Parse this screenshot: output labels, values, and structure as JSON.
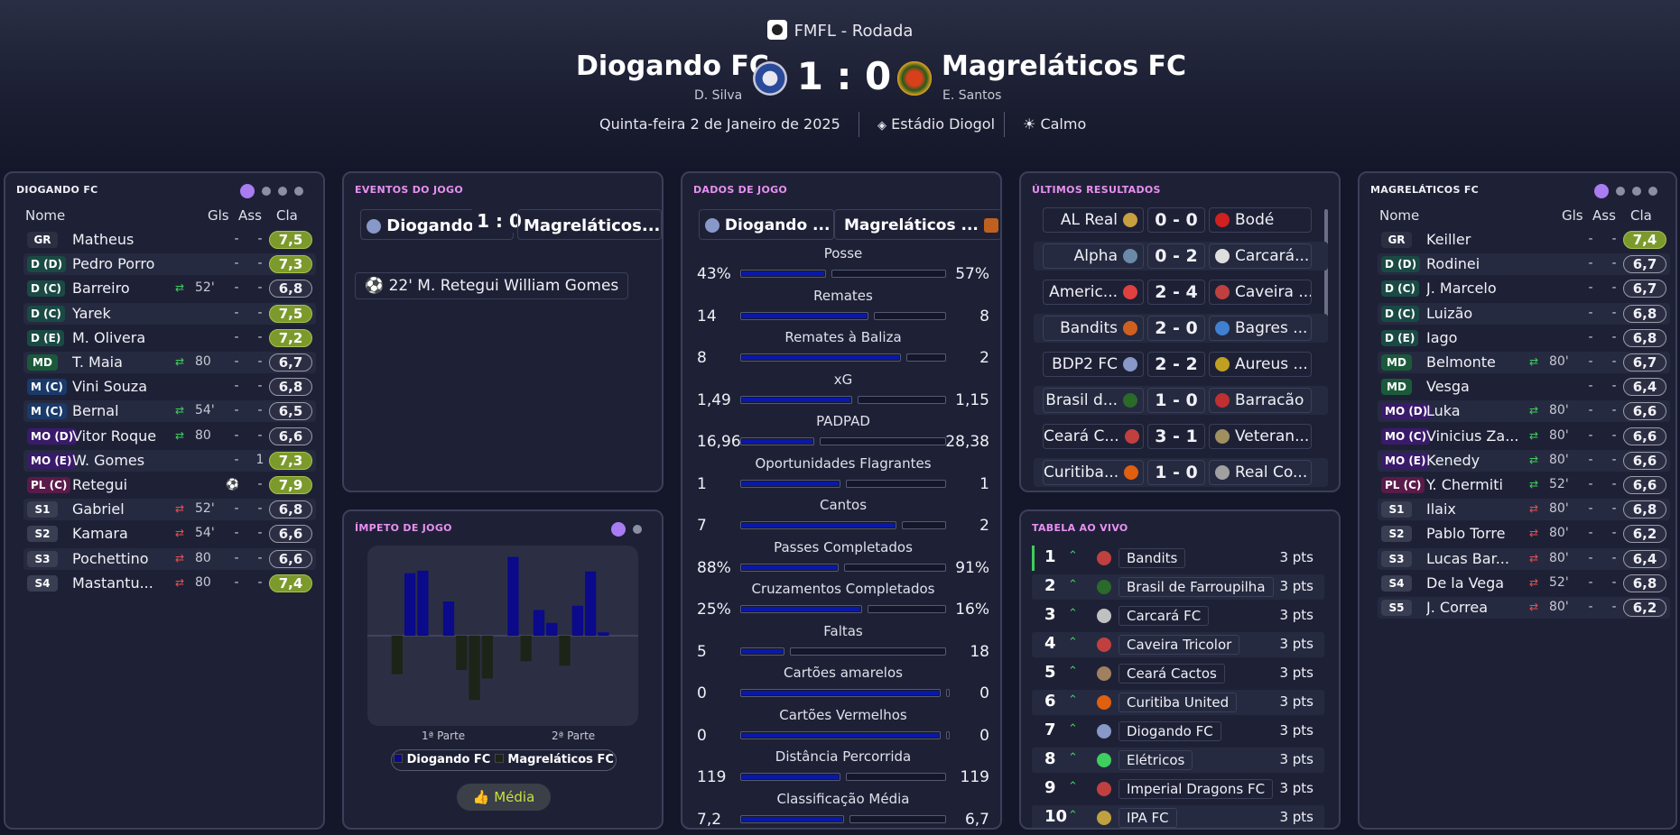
{
  "header": {
    "league": "FMFL - Rodada",
    "home_team": "Diogando FC",
    "home_manager": "D. Silva",
    "score": "1 : 0",
    "away_team": "Magreláticos FC",
    "away_manager": "E. Santos",
    "date": "Quinta-feira 2 de Janeiro de 2025",
    "stadium": "Estádio Diogol",
    "weather": "Calmo"
  },
  "home_squad": {
    "title": "Diogando FC",
    "col_name": "Nome",
    "col_gls": "Gls",
    "col_ass": "Ass",
    "col_cla": "Cla",
    "players": [
      {
        "pos": "GR",
        "name": "Matheus",
        "sub": "",
        "min": "",
        "gls": "-",
        "ass": "-",
        "rating": "7,5",
        "hi": true
      },
      {
        "pos": "D (D)",
        "name": "Pedro Porro",
        "sub": "",
        "min": "",
        "gls": "-",
        "ass": "-",
        "rating": "7,3",
        "hi": true
      },
      {
        "pos": "D (C)",
        "name": "Barreiro",
        "sub": "in",
        "min": "52'",
        "gls": "-",
        "ass": "-",
        "rating": "6,8",
        "hi": false
      },
      {
        "pos": "D (C)",
        "name": "Yarek",
        "sub": "",
        "min": "",
        "gls": "-",
        "ass": "-",
        "rating": "7,5",
        "hi": true
      },
      {
        "pos": "D (E)",
        "name": "M. Olivera",
        "sub": "",
        "min": "",
        "gls": "-",
        "ass": "-",
        "rating": "7,2",
        "hi": true
      },
      {
        "pos": "MD",
        "name": "T. Maia",
        "sub": "in",
        "min": "80",
        "gls": "-",
        "ass": "-",
        "rating": "6,7",
        "hi": false
      },
      {
        "pos": "M (C)",
        "name": "Vini Souza",
        "sub": "",
        "min": "",
        "gls": "-",
        "ass": "-",
        "rating": "6,8",
        "hi": false
      },
      {
        "pos": "M (C)",
        "name": "Bernal",
        "sub": "in",
        "min": "54'",
        "gls": "-",
        "ass": "-",
        "rating": "6,5",
        "hi": false
      },
      {
        "pos": "MO (D)",
        "name": "Vitor Roque",
        "sub": "in",
        "min": "80",
        "gls": "-",
        "ass": "-",
        "rating": "6,6",
        "hi": false
      },
      {
        "pos": "MO (E)",
        "name": "W. Gomes",
        "sub": "",
        "min": "",
        "gls": "-",
        "ass": "1",
        "rating": "7,3",
        "hi": true
      },
      {
        "pos": "PL (C)",
        "name": "Retegui",
        "sub": "goal",
        "min": "",
        "gls": "1",
        "ass": "-",
        "rating": "7,9",
        "hi": true
      },
      {
        "pos": "S1",
        "name": "Gabriel",
        "sub": "out",
        "min": "52'",
        "gls": "-",
        "ass": "-",
        "rating": "6,8",
        "hi": false
      },
      {
        "pos": "S2",
        "name": "Kamara",
        "sub": "out",
        "min": "54'",
        "gls": "-",
        "ass": "-",
        "rating": "6,6",
        "hi": false
      },
      {
        "pos": "S3",
        "name": "Pochettino",
        "sub": "out",
        "min": "80",
        "gls": "-",
        "ass": "-",
        "rating": "6,6",
        "hi": false
      },
      {
        "pos": "S4",
        "name": "Mastantu...",
        "sub": "out",
        "min": "80",
        "gls": "-",
        "ass": "-",
        "rating": "7,4",
        "hi": true
      }
    ]
  },
  "away_squad": {
    "title": "Magreláticos FC",
    "col_name": "Nome",
    "col_gls": "Gls",
    "col_ass": "Ass",
    "col_cla": "Cla",
    "players": [
      {
        "pos": "GR",
        "name": "Keiller",
        "sub": "",
        "min": "",
        "gls": "-",
        "ass": "-",
        "rating": "7,4",
        "hi": true
      },
      {
        "pos": "D (D)",
        "name": "Rodinei",
        "sub": "",
        "min": "",
        "gls": "-",
        "ass": "-",
        "rating": "6,7",
        "hi": false
      },
      {
        "pos": "D (C)",
        "name": "J. Marcelo",
        "sub": "",
        "min": "",
        "gls": "-",
        "ass": "-",
        "rating": "6,7",
        "hi": false
      },
      {
        "pos": "D (C)",
        "name": "Luizão",
        "sub": "",
        "min": "",
        "gls": "-",
        "ass": "-",
        "rating": "6,8",
        "hi": false
      },
      {
        "pos": "D (E)",
        "name": "Iago",
        "sub": "",
        "min": "",
        "gls": "-",
        "ass": "-",
        "rating": "6,8",
        "hi": false
      },
      {
        "pos": "MD",
        "name": "Belmonte",
        "sub": "in",
        "min": "80'",
        "gls": "-",
        "ass": "-",
        "rating": "6,7",
        "hi": false
      },
      {
        "pos": "MD",
        "name": "Vesga",
        "sub": "",
        "min": "",
        "gls": "-",
        "ass": "-",
        "rating": "6,4",
        "hi": false
      },
      {
        "pos": "MO (D)",
        "name": "Luka",
        "sub": "in",
        "min": "80'",
        "gls": "-",
        "ass": "-",
        "rating": "6,6",
        "hi": false
      },
      {
        "pos": "MO (C)",
        "name": "Vinicius Za...",
        "sub": "in",
        "min": "80'",
        "gls": "-",
        "ass": "-",
        "rating": "6,6",
        "hi": false
      },
      {
        "pos": "MO (E)",
        "name": "Kenedy",
        "sub": "in",
        "min": "80'",
        "gls": "-",
        "ass": "-",
        "rating": "6,6",
        "hi": false
      },
      {
        "pos": "PL (C)",
        "name": "Y. Chermiti",
        "sub": "in",
        "min": "52'",
        "gls": "-",
        "ass": "-",
        "rating": "6,6",
        "hi": false
      },
      {
        "pos": "S1",
        "name": "Ilaix",
        "sub": "out",
        "min": "80'",
        "gls": "-",
        "ass": "-",
        "rating": "6,8",
        "hi": false
      },
      {
        "pos": "S2",
        "name": "Pablo Torre",
        "sub": "out",
        "min": "80'",
        "gls": "-",
        "ass": "-",
        "rating": "6,2",
        "hi": false
      },
      {
        "pos": "S3",
        "name": "Lucas Bar...",
        "sub": "out",
        "min": "80'",
        "gls": "-",
        "ass": "-",
        "rating": "6,4",
        "hi": false
      },
      {
        "pos": "S4",
        "name": "De la Vega",
        "sub": "out",
        "min": "52'",
        "gls": "-",
        "ass": "-",
        "rating": "6,8",
        "hi": false
      },
      {
        "pos": "S5",
        "name": "J. Correa",
        "sub": "out",
        "min": "80'",
        "gls": "-",
        "ass": "-",
        "rating": "6,2",
        "hi": false
      }
    ]
  },
  "events": {
    "title": "Eventos do Jogo",
    "home": "Diogando...",
    "score": "1 : 0",
    "away": "Magreláticos...",
    "items": [
      {
        "minute": "22'",
        "text": "M. Retegui William Gomes"
      }
    ]
  },
  "momentum": {
    "title": "Ímpeto de Jogo",
    "first_half": "1ª Parte",
    "second_half": "2ª Parte",
    "legend_home": "Diogando FC",
    "legend_away": "Magreláticos FC",
    "media_label": "Média",
    "home_color": "#0a0a8a",
    "away_color": "#1c2418",
    "bars": [
      {
        "t": 3,
        "v": -0.45
      },
      {
        "t": 4,
        "v": 0.73
      },
      {
        "t": 5,
        "v": 0.76
      },
      {
        "t": 6,
        "v": 0
      },
      {
        "t": 7,
        "v": 0.4
      },
      {
        "t": 8,
        "v": -0.4
      },
      {
        "t": 9,
        "v": -0.75
      },
      {
        "t": 10,
        "v": -0.5
      },
      {
        "t": 11,
        "v": 0
      },
      {
        "t": 12,
        "v": 0.92
      },
      {
        "t": 13,
        "v": -0.3
      },
      {
        "t": 14,
        "v": 0.3
      },
      {
        "t": 15,
        "v": 0.15
      },
      {
        "t": 16,
        "v": -0.35
      },
      {
        "t": 17,
        "v": 0.35
      },
      {
        "t": 18,
        "v": 0.75
      },
      {
        "t": 19,
        "v": 0.04
      }
    ]
  },
  "stats": {
    "title": "Dados de Jogo",
    "home": "Diogando ...",
    "away": "Magreláticos ...",
    "rows": [
      {
        "label": "Posse",
        "home": "43%",
        "away": "57%",
        "hp": 0.43,
        "ap": 0.57
      },
      {
        "label": "Remates",
        "home": "14",
        "away": "8",
        "hp": 0.64,
        "ap": 0.36
      },
      {
        "label": "Remates à Baliza",
        "home": "8",
        "away": "2",
        "hp": 0.8,
        "ap": 0.2
      },
      {
        "label": "xG",
        "home": "1,49",
        "away": "1,15",
        "hp": 0.56,
        "ap": 0.44
      },
      {
        "label": "PADPAD",
        "home": "16,96",
        "away": "28,38",
        "hp": 0.37,
        "ap": 0.63
      },
      {
        "label": "Oportunidades Flagrantes",
        "home": "1",
        "away": "1",
        "hp": 0.5,
        "ap": 0.5
      },
      {
        "label": "Cantos",
        "home": "7",
        "away": "2",
        "hp": 0.78,
        "ap": 0.22
      },
      {
        "label": "Passes Completados",
        "home": "88%",
        "away": "91%",
        "hp": 0.49,
        "ap": 0.51
      },
      {
        "label": "Cruzamentos Completados",
        "home": "25%",
        "away": "16%",
        "hp": 0.61,
        "ap": 0.39
      },
      {
        "label": "Faltas",
        "home": "5",
        "away": "18",
        "hp": 0.22,
        "ap": 0.78
      },
      {
        "label": "Cartões amarelos",
        "home": "0",
        "away": "0",
        "hp": 1.0,
        "ap": 0.0
      },
      {
        "label": "Cartões Vermelhos",
        "home": "0",
        "away": "0",
        "hp": 1.0,
        "ap": 0.0
      },
      {
        "label": "Distância Percorrida",
        "home": "119",
        "away": "119",
        "hp": 0.5,
        "ap": 0.5
      },
      {
        "label": "Classificação Média",
        "home": "7,2",
        "away": "6,7",
        "hp": 0.52,
        "ap": 0.48
      }
    ]
  },
  "results": {
    "title": "Últimos Resultados",
    "items": [
      {
        "home": "AL Real",
        "score": "0 - 0",
        "away": "Bodé"
      },
      {
        "home": "Alpha",
        "score": "0 - 2",
        "away": "Carcará..."
      },
      {
        "home": "Americ...",
        "score": "2 - 4",
        "away": "Caveira ..."
      },
      {
        "home": "Bandits",
        "score": "2 - 0",
        "away": "Bagres ..."
      },
      {
        "home": "BDP2 FC",
        "score": "2 - 2",
        "away": "Aureus ..."
      },
      {
        "home": "Brasil d...",
        "score": "1 - 0",
        "away": "Barracão"
      },
      {
        "home": "Ceará C...",
        "score": "3 - 1",
        "away": "Veteran..."
      },
      {
        "home": "Curitiba...",
        "score": "1 - 0",
        "away": "Real Co..."
      }
    ]
  },
  "table": {
    "title": "Tabela ao Vivo",
    "rows": [
      {
        "pos": "1",
        "team": "Bandits",
        "pts": "3 pts"
      },
      {
        "pos": "2",
        "team": "Brasil de Farroupilha",
        "pts": "3 pts"
      },
      {
        "pos": "3",
        "team": "Carcará FC",
        "pts": "3 pts"
      },
      {
        "pos": "4",
        "team": "Caveira Tricolor",
        "pts": "3 pts"
      },
      {
        "pos": "5",
        "team": "Ceará Cactos",
        "pts": "3 pts"
      },
      {
        "pos": "6",
        "team": "Curitiba United",
        "pts": "3 pts"
      },
      {
        "pos": "7",
        "team": "Diogando FC",
        "pts": "3 pts"
      },
      {
        "pos": "8",
        "team": "Elétricos",
        "pts": "3 pts"
      },
      {
        "pos": "9",
        "team": "Imperial Dragons FC",
        "pts": "3 pts"
      },
      {
        "pos": "10",
        "team": "IPA FC",
        "pts": "3 pts"
      }
    ]
  },
  "colors": {
    "accent": "#a97cf2",
    "bar_fill": "#0a18a8",
    "rating_high": "#7c9a2c"
  }
}
